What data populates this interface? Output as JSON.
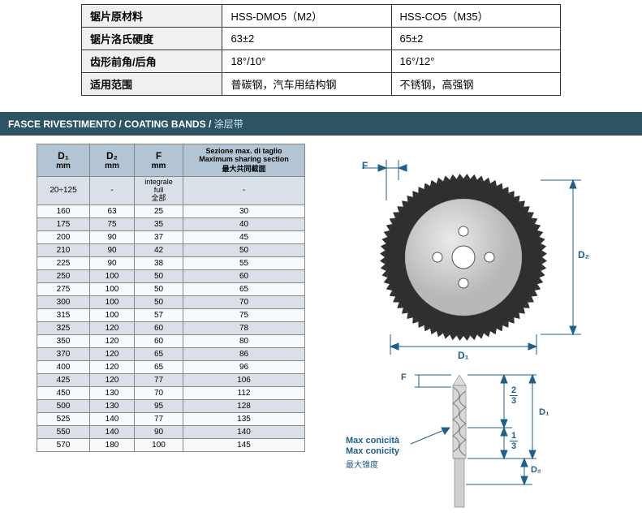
{
  "top_table": {
    "rows": [
      {
        "label": "锯片原材料",
        "v1": "HSS-DMO5（M2）",
        "v2": "HSS-CO5（M35）"
      },
      {
        "label": "锯片洛氏硬度",
        "v1": "63±2",
        "v2": "65±2"
      },
      {
        "label": "齿形前角/后角",
        "v1": "18°/10°",
        "v2": "16°/12°"
      },
      {
        "label": "适用范围",
        "v1": "普碳钢，汽车用结构钢",
        "v2": "不锈钢，高强钢"
      }
    ]
  },
  "section_header": {
    "it": "FASCE RIVESTIMENTO",
    "sep": " / ",
    "en": "COATING BANDS",
    "cn": "涂层带"
  },
  "coating_table": {
    "headers": {
      "d1": {
        "big": "D₁",
        "unit": "mm"
      },
      "d2": {
        "big": "D₂",
        "unit": "mm"
      },
      "f": {
        "big": "F",
        "unit": "mm"
      },
      "section": {
        "it": "Sezione max. di taglio",
        "en": "Maximum sharing section",
        "cn": "最大共同截面"
      }
    },
    "first_row": {
      "d1": "20÷125",
      "d2": "-",
      "f": {
        "it": "integrale",
        "en": "full",
        "cn": "全部"
      },
      "section": "-"
    },
    "rows": [
      {
        "d1": "160",
        "d2": "63",
        "f": "25",
        "s": "30"
      },
      {
        "d1": "175",
        "d2": "75",
        "f": "35",
        "s": "40"
      },
      {
        "d1": "200",
        "d2": "90",
        "f": "37",
        "s": "45"
      },
      {
        "d1": "210",
        "d2": "90",
        "f": "42",
        "s": "50"
      },
      {
        "d1": "225",
        "d2": "90",
        "f": "38",
        "s": "55"
      },
      {
        "d1": "250",
        "d2": "100",
        "f": "50",
        "s": "60"
      },
      {
        "d1": "275",
        "d2": "100",
        "f": "50",
        "s": "65"
      },
      {
        "d1": "300",
        "d2": "100",
        "f": "50",
        "s": "70"
      },
      {
        "d1": "315",
        "d2": "100",
        "f": "57",
        "s": "75"
      },
      {
        "d1": "325",
        "d2": "120",
        "f": "60",
        "s": "78"
      },
      {
        "d1": "350",
        "d2": "120",
        "f": "60",
        "s": "80"
      },
      {
        "d1": "370",
        "d2": "120",
        "f": "65",
        "s": "86"
      },
      {
        "d1": "400",
        "d2": "120",
        "f": "65",
        "s": "96"
      },
      {
        "d1": "425",
        "d2": "120",
        "f": "77",
        "s": "106"
      },
      {
        "d1": "450",
        "d2": "130",
        "f": "70",
        "s": "112"
      },
      {
        "d1": "500",
        "d2": "130",
        "f": "95",
        "s": "128"
      },
      {
        "d1": "525",
        "d2": "140",
        "f": "77",
        "s": "135"
      },
      {
        "d1": "550",
        "d2": "140",
        "f": "90",
        "s": "140"
      },
      {
        "d1": "570",
        "d2": "180",
        "f": "100",
        "s": "145"
      }
    ]
  },
  "disc_labels": {
    "f": "F",
    "d1": "D₁",
    "d2": "D₂"
  },
  "drill_labels": {
    "f": "F",
    "d1": "D₁",
    "d2": "D₂",
    "frac23_num": "2",
    "frac23_den": "3",
    "frac13_num": "1",
    "frac13_den": "3",
    "max_it": "Max conicità",
    "max_en": "Max conicity",
    "max_cn": "最大锥度"
  },
  "colors": {
    "header_bg": "#2d5463",
    "table_header_bg": "#b3c5d4",
    "row_odd": "#d9e0e8",
    "row_even": "#f7f9fb",
    "label_blue": "#1e5f8e",
    "disc_dark": "#3a3a3a",
    "disc_light": "#cfcfcf"
  }
}
